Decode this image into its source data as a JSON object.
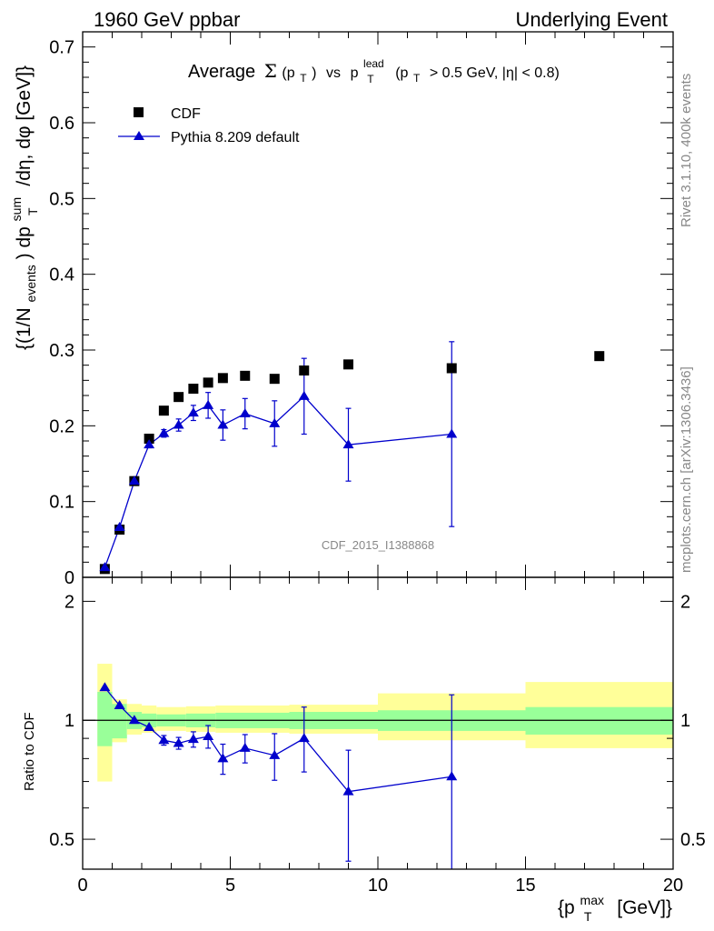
{
  "header": {
    "left": "1960 GeV ppbar",
    "right": "Underlying Event"
  },
  "title": {
    "average": "Average",
    "sigma": "Σ",
    "pt_open": "(p",
    "pt_sub": "T",
    "pt_close": ")",
    "vs": "vs",
    "p": "p",
    "lead_sup": "lead",
    "lead_sub": "T",
    "cut_open": "(p",
    "cut_sub": "T",
    "cut_rest": "> 0.5 GeV, |η| < 0.8)"
  },
  "side_labels": {
    "rivet": "Rivet 3.1.10,  400k events",
    "mcplots": "mcplots.cern.ch [arXiv:1306.3436]"
  },
  "watermark": "CDF_2015_I1388868",
  "legend": {
    "cdf": "CDF",
    "pythia": "Pythia 8.209 default"
  },
  "y_label_top": {
    "a": "{(1/N",
    "a_sub": "events",
    "b": ") dp",
    "b_sup": "sum",
    "b_sub": "T",
    "c": "/dη, dφ [GeV]}"
  },
  "y_label_bottom": "Ratio to CDF",
  "x_label": {
    "open": "{p",
    "sup": "max",
    "sub": "T",
    "rest": "[GeV]}"
  },
  "colors": {
    "mc": "#0000cc",
    "data": "#000000",
    "band_inner": "#99ff99",
    "band_outer": "#ffff99"
  },
  "chart_data": [
    {
      "type": "scatter",
      "panel": "main",
      "ylim": [
        0,
        0.72
      ],
      "xlim": [
        0,
        20
      ],
      "y_ticks": [
        "0",
        "0.1",
        "0.2",
        "0.3",
        "0.4",
        "0.5",
        "0.6",
        "0.7"
      ],
      "series": [
        {
          "name": "CDF",
          "x": [
            0.75,
            1.25,
            1.75,
            2.25,
            2.75,
            3.25,
            3.75,
            4.25,
            4.75,
            5.5,
            6.5,
            7.5,
            9.0,
            12.5,
            17.5
          ],
          "y": [
            0.011,
            0.063,
            0.127,
            0.183,
            0.22,
            0.238,
            0.249,
            0.257,
            0.263,
            0.266,
            0.262,
            0.273,
            0.281,
            0.276,
            0.292
          ]
        },
        {
          "name": "Pythia 8.209 default",
          "x": [
            0.75,
            1.25,
            1.75,
            2.25,
            2.75,
            3.25,
            3.75,
            4.25,
            4.75,
            5.5,
            6.5,
            7.5,
            9.0,
            12.5
          ],
          "y": [
            0.013,
            0.066,
            0.127,
            0.175,
            0.19,
            0.201,
            0.217,
            0.227,
            0.201,
            0.216,
            0.203,
            0.239,
            0.175,
            0.189
          ],
          "err": [
            0.001,
            0.002,
            0.003,
            0.004,
            0.005,
            0.008,
            0.01,
            0.017,
            0.02,
            0.02,
            0.03,
            0.05,
            0.048,
            0.122
          ]
        }
      ]
    },
    {
      "type": "line",
      "panel": "ratio",
      "ylabel": "Ratio to CDF",
      "log_y": true,
      "ylim": [
        0.42,
        2.3
      ],
      "xlim": [
        0,
        20
      ],
      "x_ticks": [
        "0",
        "5",
        "10",
        "15",
        "20"
      ],
      "y_ticks": [
        "0.5",
        "1",
        "2"
      ],
      "bin_edges": [
        0.5,
        1.0,
        1.5,
        2.0,
        2.5,
        3.0,
        3.5,
        4.0,
        4.5,
        5.0,
        6.0,
        7.0,
        8.0,
        10.0,
        15.0,
        20.0
      ],
      "band_inner": [
        [
          0.86,
          1.18
        ],
        [
          0.9,
          1.1
        ],
        [
          0.95,
          1.05
        ],
        [
          0.96,
          1.04
        ],
        [
          0.965,
          1.035
        ],
        [
          0.965,
          1.035
        ],
        [
          0.96,
          1.04
        ],
        [
          0.96,
          1.04
        ],
        [
          0.955,
          1.045
        ],
        [
          0.955,
          1.045
        ],
        [
          0.955,
          1.045
        ],
        [
          0.95,
          1.05
        ],
        [
          0.95,
          1.05
        ],
        [
          0.94,
          1.06
        ],
        [
          0.92,
          1.08
        ]
      ],
      "band_outer": [
        [
          0.7,
          1.39
        ],
        [
          0.88,
          1.13
        ],
        [
          0.92,
          1.1
        ],
        [
          0.93,
          1.09
        ],
        [
          0.94,
          1.08
        ],
        [
          0.94,
          1.08
        ],
        [
          0.935,
          1.085
        ],
        [
          0.935,
          1.085
        ],
        [
          0.93,
          1.09
        ],
        [
          0.93,
          1.09
        ],
        [
          0.93,
          1.09
        ],
        [
          0.925,
          1.095
        ],
        [
          0.925,
          1.095
        ],
        [
          0.89,
          1.17
        ],
        [
          0.85,
          1.25
        ]
      ],
      "series": [
        {
          "name": "Pythia 8.209 default",
          "x": [
            0.75,
            1.25,
            1.75,
            2.25,
            2.75,
            3.25,
            3.75,
            4.25,
            4.75,
            5.5,
            6.5,
            7.5,
            9.0,
            12.5
          ],
          "y": [
            1.21,
            1.09,
            1.0,
            0.96,
            0.89,
            0.875,
            0.895,
            0.91,
            0.8,
            0.85,
            0.815,
            0.9,
            0.66,
            0.72
          ],
          "err_low": [
            0.0,
            0.0,
            0.0,
            0.0,
            0.025,
            0.03,
            0.04,
            0.06,
            0.07,
            0.07,
            0.11,
            0.16,
            0.22,
            0.72
          ],
          "err_high": [
            0.0,
            0.0,
            0.0,
            0.0,
            0.025,
            0.03,
            0.04,
            0.06,
            0.07,
            0.07,
            0.11,
            0.18,
            0.18,
            0.44
          ]
        }
      ]
    }
  ]
}
